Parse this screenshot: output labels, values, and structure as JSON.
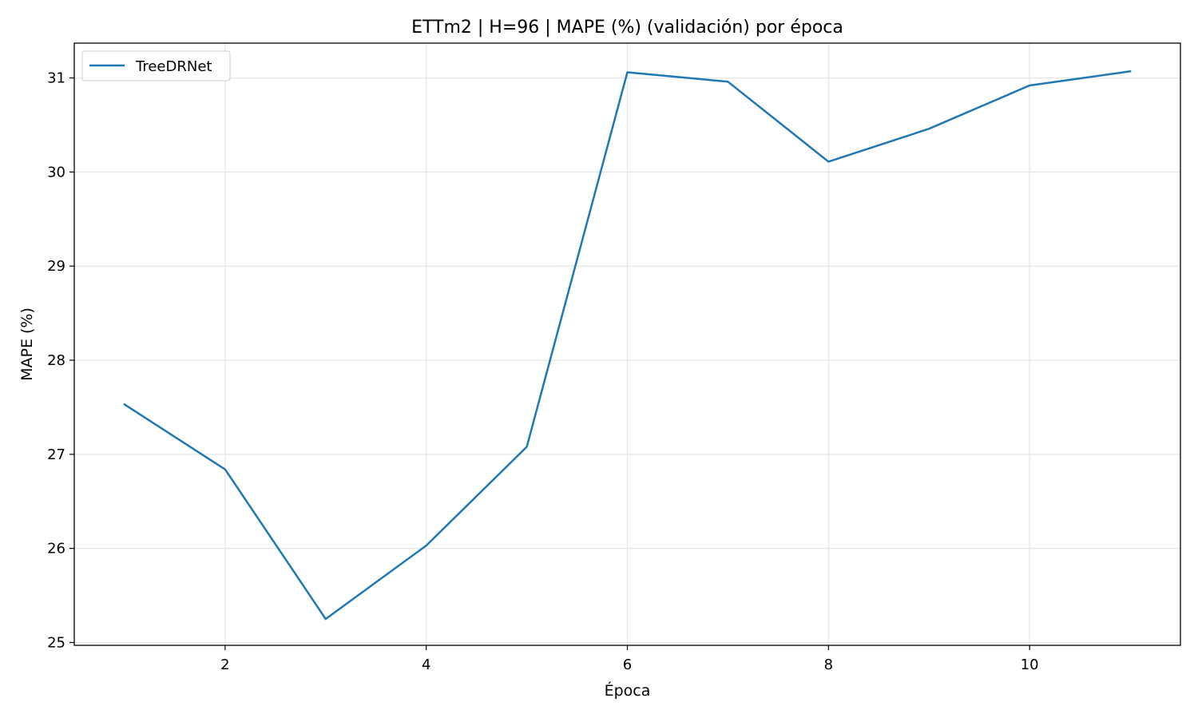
{
  "chart_data": {
    "type": "line",
    "title": "ETTm2 | H=96 | MAPE (%) (validación) por época",
    "xlabel": "Época",
    "ylabel": "MAPE (%)",
    "xlim": [
      0.5,
      11.5
    ],
    "ylim": [
      24.97,
      31.37
    ],
    "xticks": [
      2,
      4,
      6,
      8,
      10
    ],
    "yticks": [
      25,
      26,
      27,
      28,
      29,
      30,
      31
    ],
    "grid": true,
    "legend_position": "top-left",
    "series": [
      {
        "name": "TreeDRNet",
        "color": "#1f77b4",
        "x": [
          1,
          2,
          3,
          4,
          5,
          6,
          7,
          8,
          9,
          10,
          11
        ],
        "y": [
          27.53,
          26.84,
          25.25,
          26.03,
          27.08,
          31.06,
          30.96,
          30.11,
          30.46,
          30.92,
          31.07
        ]
      }
    ]
  }
}
